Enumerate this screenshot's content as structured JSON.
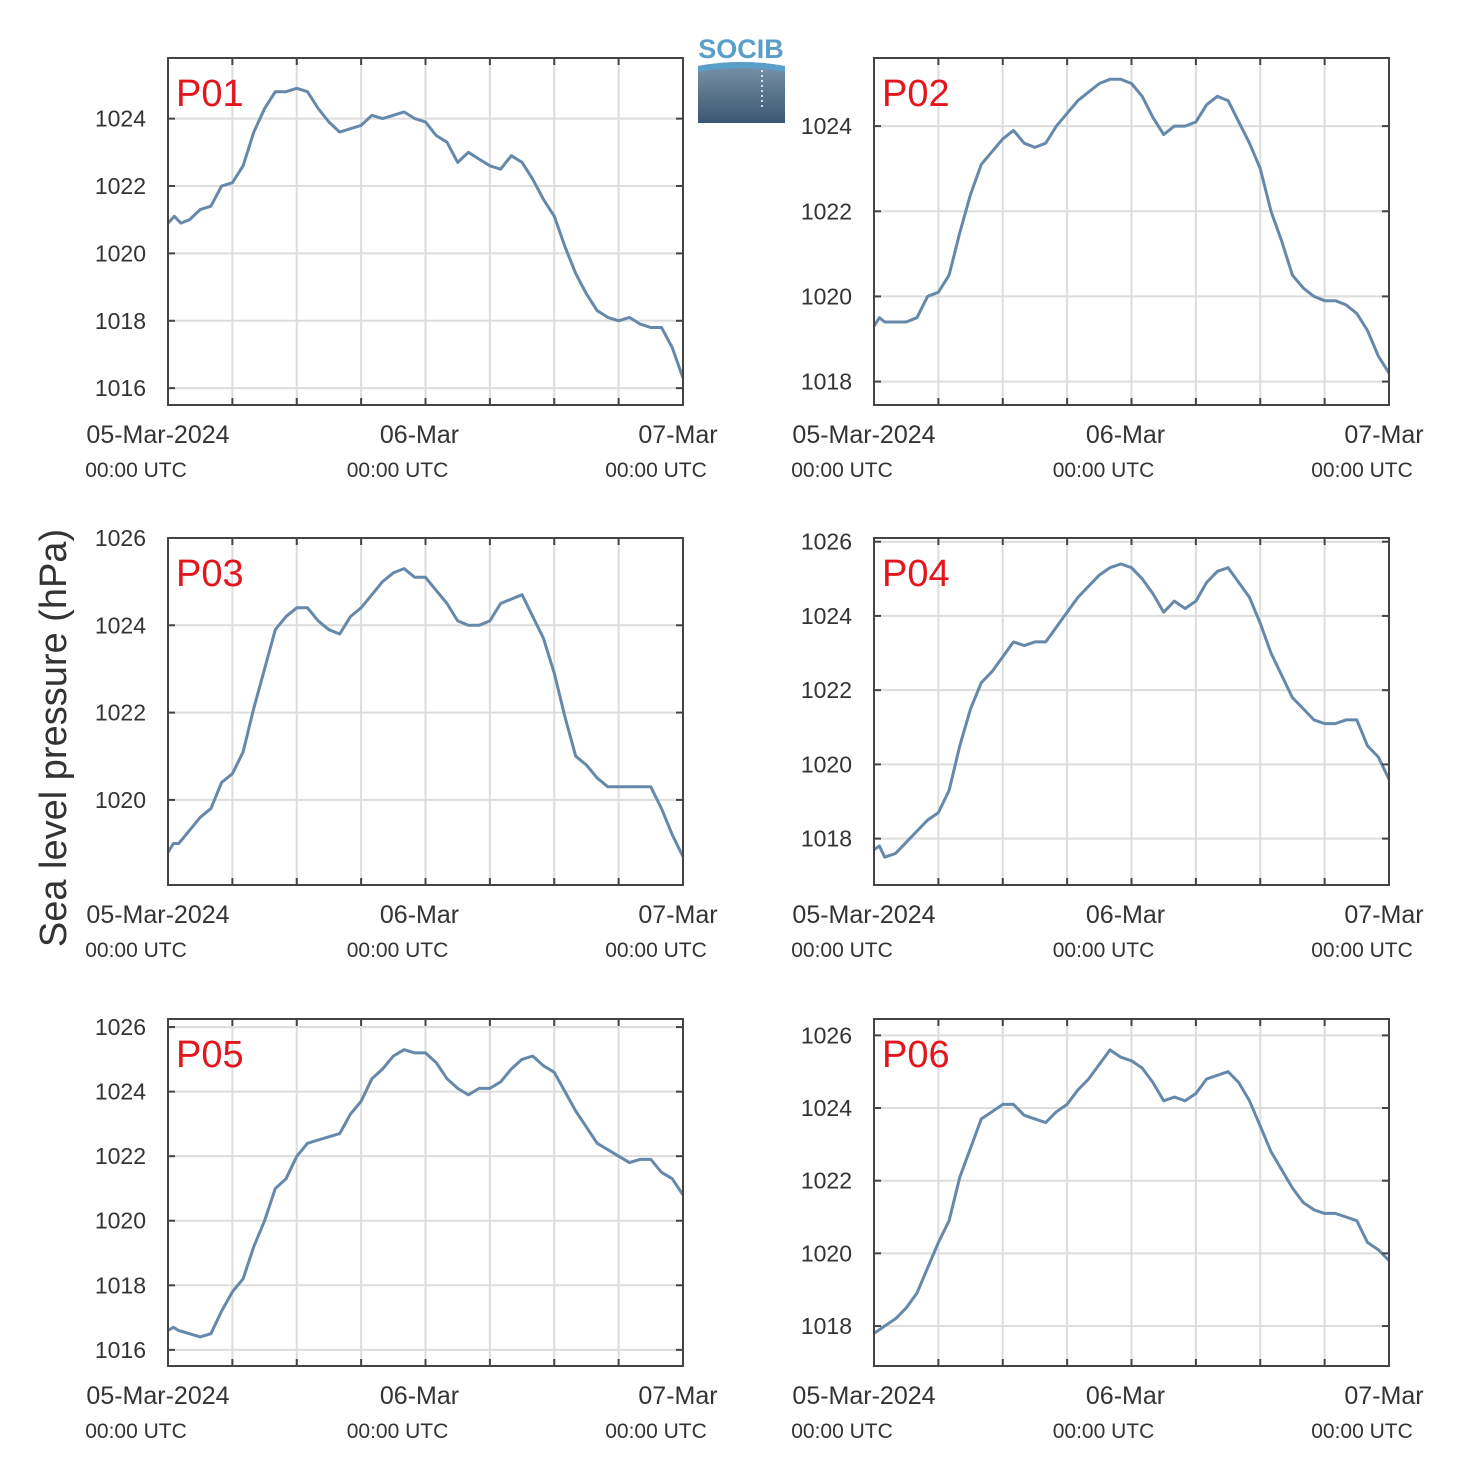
{
  "figure": {
    "ylabel": "Sea level pressure (hPa)",
    "logo_text": "SOCIB",
    "x_tick_labels": [
      {
        "date": "05-Mar-2024",
        "time": "00:00 UTC"
      },
      {
        "date": "06-Mar",
        "time": "00:00 UTC"
      },
      {
        "date": "07-Mar",
        "time": "00:00 UTC"
      }
    ]
  },
  "colors": {
    "line": "#6688aa",
    "panel_label": "#e3161e",
    "grid": "#dddddd",
    "axis": "#444444",
    "logo_top": "#5a9fc8",
    "logo_bottom": "#3b5873"
  },
  "chart_data": [
    {
      "type": "line",
      "title": "P01",
      "x_range": [
        "2024-03-05T00:00Z",
        "2024-03-07T00:00Z"
      ],
      "xlim_hours": [
        0,
        48
      ],
      "ylim": [
        1015.5,
        1025.8
      ],
      "yticks": [
        1016,
        1018,
        1020,
        1022,
        1024
      ],
      "grid": true,
      "series": [
        {
          "x_hours": [
            0,
            0.6,
            1.2,
            2,
            3,
            4,
            5,
            6,
            7,
            8,
            9,
            10,
            11,
            12,
            13,
            14,
            15,
            16,
            17,
            18,
            19,
            20,
            21,
            22,
            23,
            24,
            25,
            26,
            27,
            28,
            29,
            30,
            31,
            32,
            33,
            34,
            35,
            36,
            37,
            38,
            39,
            40,
            41,
            42,
            43,
            44,
            45,
            46,
            47,
            48
          ],
          "values": [
            1020.9,
            1021.1,
            1020.9,
            1021.0,
            1021.3,
            1021.4,
            1022.0,
            1022.1,
            1022.6,
            1023.6,
            1024.3,
            1024.8,
            1024.8,
            1024.9,
            1024.8,
            1024.3,
            1023.9,
            1023.6,
            1023.7,
            1023.8,
            1024.1,
            1024.0,
            1024.1,
            1024.2,
            1024.0,
            1023.9,
            1023.5,
            1023.3,
            1022.7,
            1023.0,
            1022.8,
            1022.6,
            1022.5,
            1022.9,
            1022.7,
            1022.2,
            1021.6,
            1021.1,
            1020.2,
            1019.4,
            1018.8,
            1018.3,
            1018.1,
            1018.0,
            1018.1,
            1017.9,
            1017.8,
            1017.8,
            1017.2,
            1016.3
          ]
        }
      ]
    },
    {
      "type": "line",
      "title": "P02",
      "x_range": [
        "2024-03-05T00:00Z",
        "2024-03-07T00:00Z"
      ],
      "xlim_hours": [
        0,
        48
      ],
      "ylim": [
        1017.45,
        1025.6
      ],
      "yticks": [
        1018,
        1020,
        1022,
        1024
      ],
      "grid": true,
      "series": [
        {
          "x_hours": [
            0,
            0.5,
            1,
            2,
            3,
            4,
            5,
            6,
            7,
            8,
            9,
            10,
            11,
            12,
            13,
            14,
            15,
            16,
            17,
            18,
            19,
            20,
            21,
            22,
            23,
            24,
            25,
            26,
            27,
            28,
            29,
            30,
            31,
            32,
            33,
            34,
            35,
            36,
            37,
            38,
            39,
            40,
            41,
            42,
            43,
            44,
            45,
            46,
            47,
            48
          ],
          "values": [
            1019.3,
            1019.5,
            1019.4,
            1019.4,
            1019.4,
            1019.5,
            1020.0,
            1020.1,
            1020.5,
            1021.5,
            1022.4,
            1023.1,
            1023.4,
            1023.7,
            1023.9,
            1023.6,
            1023.5,
            1023.6,
            1024.0,
            1024.3,
            1024.6,
            1024.8,
            1025.0,
            1025.1,
            1025.1,
            1025.0,
            1024.7,
            1024.2,
            1023.8,
            1024.0,
            1024.0,
            1024.1,
            1024.5,
            1024.7,
            1024.6,
            1024.1,
            1023.6,
            1023.0,
            1022.0,
            1021.3,
            1020.5,
            1020.2,
            1020.0,
            1019.9,
            1019.9,
            1019.8,
            1019.6,
            1019.2,
            1018.6,
            1018.2
          ]
        }
      ]
    },
    {
      "type": "line",
      "title": "P03",
      "x_range": [
        "2024-03-05T00:00Z",
        "2024-03-07T00:00Z"
      ],
      "xlim_hours": [
        0,
        48
      ],
      "ylim": [
        1018.05,
        1026.0
      ],
      "yticks": [
        1020,
        1022,
        1024,
        1026
      ],
      "grid": true,
      "series": [
        {
          "x_hours": [
            0,
            0.5,
            1,
            2,
            3,
            4,
            5,
            6,
            7,
            8,
            9,
            10,
            11,
            12,
            13,
            14,
            15,
            16,
            17,
            18,
            19,
            20,
            21,
            22,
            23,
            24,
            25,
            26,
            27,
            28,
            29,
            30,
            31,
            32,
            33,
            34,
            35,
            36,
            37,
            38,
            39,
            40,
            41,
            42,
            43,
            44,
            45,
            46,
            47,
            48
          ],
          "values": [
            1018.8,
            1019.0,
            1019.0,
            1019.3,
            1019.6,
            1019.8,
            1020.4,
            1020.6,
            1021.1,
            1022.1,
            1023.0,
            1023.9,
            1024.2,
            1024.4,
            1024.4,
            1024.1,
            1023.9,
            1023.8,
            1024.2,
            1024.4,
            1024.7,
            1025.0,
            1025.2,
            1025.3,
            1025.1,
            1025.1,
            1024.8,
            1024.5,
            1024.1,
            1024.0,
            1024.0,
            1024.1,
            1024.5,
            1024.6,
            1024.7,
            1024.2,
            1023.7,
            1022.9,
            1021.9,
            1021.0,
            1020.8,
            1020.5,
            1020.3,
            1020.3,
            1020.3,
            1020.3,
            1020.3,
            1019.8,
            1019.2,
            1018.7
          ]
        }
      ]
    },
    {
      "type": "line",
      "title": "P04",
      "x_range": [
        "2024-03-05T00:00Z",
        "2024-03-07T00:00Z"
      ],
      "xlim_hours": [
        0,
        48
      ],
      "ylim": [
        1016.75,
        1026.1
      ],
      "yticks": [
        1018,
        1020,
        1022,
        1024,
        1026
      ],
      "grid": true,
      "series": [
        {
          "x_hours": [
            0,
            0.5,
            1,
            2,
            3,
            4,
            5,
            6,
            7,
            8,
            9,
            10,
            11,
            12,
            13,
            14,
            15,
            16,
            17,
            18,
            19,
            20,
            21,
            22,
            23,
            24,
            25,
            26,
            27,
            28,
            29,
            30,
            31,
            32,
            33,
            34,
            35,
            36,
            37,
            38,
            39,
            40,
            41,
            42,
            43,
            44,
            45,
            46,
            47,
            48
          ],
          "values": [
            1017.7,
            1017.8,
            1017.5,
            1017.6,
            1017.9,
            1018.2,
            1018.5,
            1018.7,
            1019.3,
            1020.5,
            1021.5,
            1022.2,
            1022.5,
            1022.9,
            1023.3,
            1023.2,
            1023.3,
            1023.3,
            1023.7,
            1024.1,
            1024.5,
            1024.8,
            1025.1,
            1025.3,
            1025.4,
            1025.3,
            1025.0,
            1024.6,
            1024.1,
            1024.4,
            1024.2,
            1024.4,
            1024.9,
            1025.2,
            1025.3,
            1024.9,
            1024.5,
            1023.8,
            1023.0,
            1022.4,
            1021.8,
            1021.5,
            1021.2,
            1021.1,
            1021.1,
            1021.2,
            1021.2,
            1020.5,
            1020.2,
            1019.6
          ]
        }
      ]
    },
    {
      "type": "line",
      "title": "P05",
      "x_range": [
        "2024-03-05T00:00Z",
        "2024-03-07T00:00Z"
      ],
      "xlim_hours": [
        0,
        48
      ],
      "ylim": [
        1015.5,
        1026.25
      ],
      "yticks": [
        1016,
        1018,
        1020,
        1022,
        1024,
        1026
      ],
      "grid": true,
      "series": [
        {
          "x_hours": [
            0,
            0.5,
            1,
            2,
            3,
            4,
            5,
            6,
            7,
            8,
            9,
            10,
            11,
            12,
            13,
            14,
            15,
            16,
            17,
            18,
            19,
            20,
            21,
            22,
            23,
            24,
            25,
            26,
            27,
            28,
            29,
            30,
            31,
            32,
            33,
            34,
            35,
            36,
            37,
            38,
            39,
            40,
            41,
            42,
            43,
            44,
            45,
            46,
            47,
            48
          ],
          "values": [
            1016.6,
            1016.7,
            1016.6,
            1016.5,
            1016.4,
            1016.5,
            1017.2,
            1017.8,
            1018.2,
            1019.2,
            1020.0,
            1021.0,
            1021.3,
            1022.0,
            1022.4,
            1022.5,
            1022.6,
            1022.7,
            1023.3,
            1023.7,
            1024.4,
            1024.7,
            1025.1,
            1025.3,
            1025.2,
            1025.2,
            1024.9,
            1024.4,
            1024.1,
            1023.9,
            1024.1,
            1024.1,
            1024.3,
            1024.7,
            1025.0,
            1025.1,
            1024.8,
            1024.6,
            1024.0,
            1023.4,
            1022.9,
            1022.4,
            1022.2,
            1022.0,
            1021.8,
            1021.9,
            1021.9,
            1021.5,
            1021.3,
            1020.8
          ]
        }
      ]
    },
    {
      "type": "line",
      "title": "P06",
      "x_range": [
        "2024-03-05T00:00Z",
        "2024-03-07T00:00Z"
      ],
      "xlim_hours": [
        0,
        48
      ],
      "ylim": [
        1016.9,
        1026.45
      ],
      "yticks": [
        1018,
        1020,
        1022,
        1024,
        1026
      ],
      "grid": true,
      "series": [
        {
          "x_hours": [
            0,
            0.5,
            1,
            2,
            3,
            4,
            5,
            6,
            7,
            8,
            9,
            10,
            11,
            12,
            13,
            14,
            15,
            16,
            17,
            18,
            19,
            20,
            21,
            22,
            23,
            24,
            25,
            26,
            27,
            28,
            29,
            30,
            31,
            32,
            33,
            34,
            35,
            36,
            37,
            38,
            39,
            40,
            41,
            42,
            43,
            44,
            45,
            46,
            47,
            48
          ],
          "values": [
            1017.8,
            1017.9,
            1018.0,
            1018.2,
            1018.5,
            1018.9,
            1019.6,
            1020.3,
            1020.9,
            1022.1,
            1022.9,
            1023.7,
            1023.9,
            1024.1,
            1024.1,
            1023.8,
            1023.7,
            1023.6,
            1023.9,
            1024.1,
            1024.5,
            1024.8,
            1025.2,
            1025.6,
            1025.4,
            1025.3,
            1025.1,
            1024.7,
            1024.2,
            1024.3,
            1024.2,
            1024.4,
            1024.8,
            1024.9,
            1025.0,
            1024.7,
            1024.2,
            1023.5,
            1022.8,
            1022.3,
            1021.8,
            1021.4,
            1021.2,
            1021.1,
            1021.1,
            1021.0,
            1020.9,
            1020.3,
            1020.1,
            1019.8
          ]
        }
      ]
    }
  ]
}
